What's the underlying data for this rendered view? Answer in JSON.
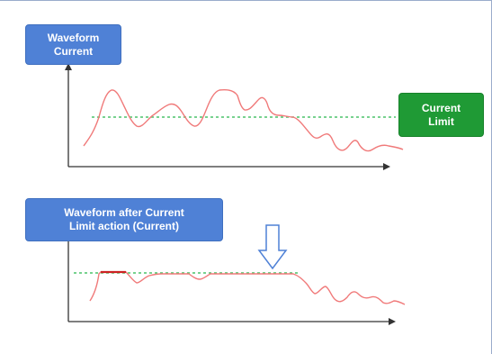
{
  "labels": {
    "waveform_current": "Waveform\nCurrent",
    "current_limit": "Current\nLimit",
    "waveform_after": "Waveform after Current\nLimit action (Current)"
  },
  "colors": {
    "blue_box": "#4f81d6",
    "green_box": "#1f9a35",
    "waveform": "#f07a7a",
    "clipped_segment": "#cc2222",
    "limit_line": "#4cc46a",
    "axis": "#333333",
    "down_arrow_outline": "#4f81d6"
  },
  "icons": {
    "down_arrow": "hollow-down-arrow-icon"
  }
}
